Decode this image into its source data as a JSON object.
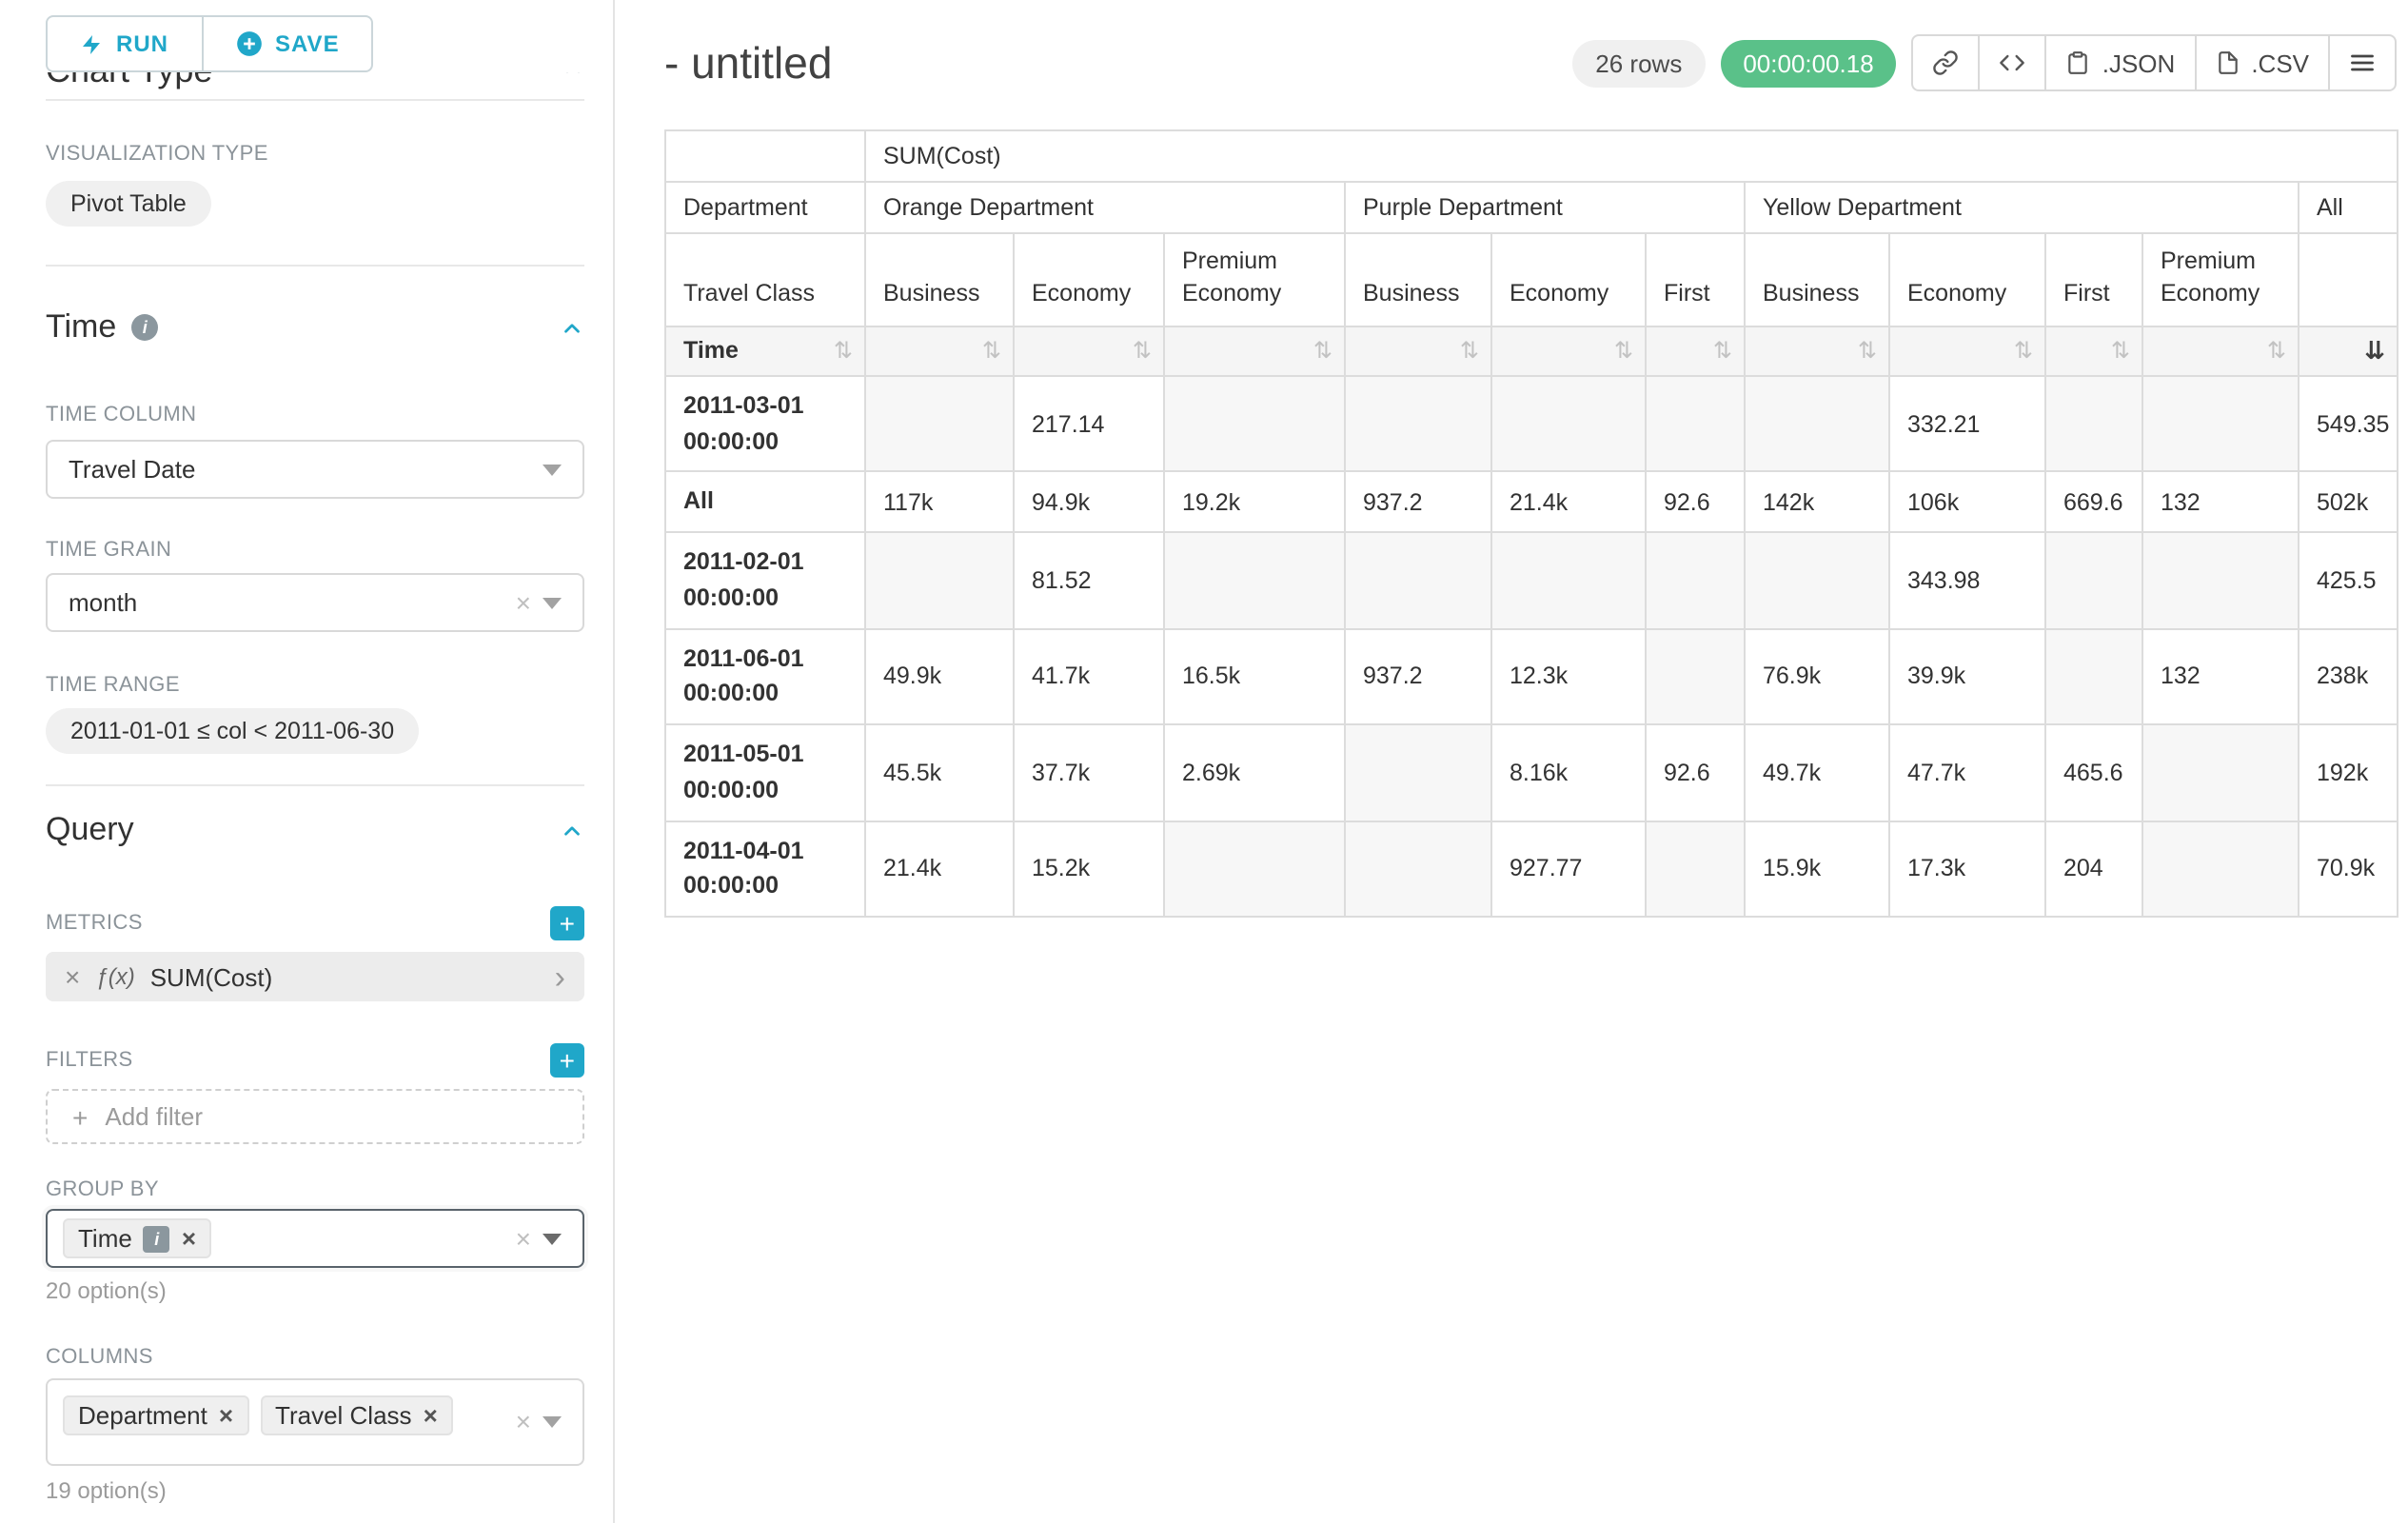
{
  "icons": {
    "close": "×",
    "add": "+",
    "chevron_right": "›",
    "sort_inactive": "⇅",
    "sort_active_desc": "⇊",
    "info": "i"
  },
  "sidebar": {
    "run": {
      "label": "RUN"
    },
    "save": {
      "label": "SAVE"
    },
    "chart_type_header": "Chart Type",
    "visualization": {
      "label": "VISUALIZATION TYPE",
      "value": "Pivot Table"
    },
    "time_section": {
      "title": "Time",
      "time_column": {
        "label": "TIME COLUMN",
        "value": "Travel Date"
      },
      "time_grain": {
        "label": "TIME GRAIN",
        "value": "month"
      },
      "time_range": {
        "label": "TIME RANGE",
        "value": "2011-01-01 ≤ col < 2011-06-30"
      }
    },
    "query_section": {
      "title": "Query",
      "metrics": {
        "label": "METRICS",
        "items": [
          {
            "prefix": "ƒ(x)",
            "label": "SUM(Cost)"
          }
        ]
      },
      "filters": {
        "label": "FILTERS",
        "placeholder": "Add filter"
      },
      "group_by": {
        "label": "GROUP BY",
        "chips": [
          "Time"
        ],
        "hint": "20 option(s)"
      },
      "columns": {
        "label": "COLUMNS",
        "chips": [
          "Department",
          "Travel Class"
        ],
        "hint": "19 option(s)"
      }
    }
  },
  "header": {
    "title": "- untitled",
    "row_count": "26 rows",
    "timer": "00:00:00.18",
    "buttons": {
      "json": ".JSON",
      "csv": ".CSV"
    }
  },
  "chart_data": {
    "type": "table",
    "metric": "SUM(Cost)",
    "corner_row2": "Department",
    "corner_row3": "Travel Class",
    "corner_row4": "Time",
    "groups": [
      {
        "label": "Orange Department",
        "columns": [
          "Business",
          "Economy",
          "Premium Economy"
        ]
      },
      {
        "label": "Purple Department",
        "columns": [
          "Business",
          "Economy",
          "First"
        ]
      },
      {
        "label": "Yellow Department",
        "columns": [
          "Business",
          "Economy",
          "First",
          "Premium Economy"
        ]
      },
      {
        "label": "All",
        "columns": [
          ""
        ]
      }
    ],
    "rows": [
      {
        "label": "2011-03-01 00:00:00",
        "values": [
          null,
          "217.14",
          null,
          null,
          null,
          null,
          null,
          "332.21",
          null,
          null,
          "549.35"
        ]
      },
      {
        "label": "All",
        "values": [
          "117k",
          "94.9k",
          "19.2k",
          "937.2",
          "21.4k",
          "92.6",
          "142k",
          "106k",
          "669.6",
          "132",
          "502k"
        ]
      },
      {
        "label": "2011-02-01 00:00:00",
        "values": [
          null,
          "81.52",
          null,
          null,
          null,
          null,
          null,
          "343.98",
          null,
          null,
          "425.5"
        ]
      },
      {
        "label": "2011-06-01 00:00:00",
        "values": [
          "49.9k",
          "41.7k",
          "16.5k",
          "937.2",
          "12.3k",
          null,
          "76.9k",
          "39.9k",
          null,
          "132",
          "238k"
        ]
      },
      {
        "label": "2011-05-01 00:00:00",
        "values": [
          "45.5k",
          "37.7k",
          "2.69k",
          null,
          "8.16k",
          "92.6",
          "49.7k",
          "47.7k",
          "465.6",
          null,
          "192k"
        ]
      },
      {
        "label": "2011-04-01 00:00:00",
        "values": [
          "21.4k",
          "15.2k",
          null,
          null,
          "927.77",
          null,
          "15.9k",
          "17.3k",
          "204",
          null,
          "70.9k"
        ]
      }
    ],
    "sorted_column": "All",
    "sort_direction": "desc"
  }
}
